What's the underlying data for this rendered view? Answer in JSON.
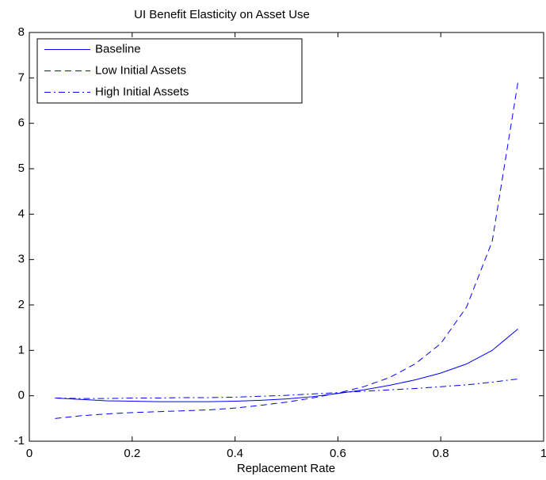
{
  "chart_data": {
    "type": "line",
    "title": "UI Benefit Elasticity on Asset Use",
    "x_label": "Replacement Rate",
    "x": [
      0.05,
      0.1,
      0.15,
      0.2,
      0.25,
      0.3,
      0.35,
      0.4,
      0.45,
      0.5,
      0.55,
      0.6,
      0.65,
      0.7,
      0.75,
      0.8,
      0.85,
      0.9,
      0.95
    ],
    "series": [
      {
        "name": "Baseline",
        "color": "#0000ff",
        "line_style": "solid",
        "values": [
          -0.05,
          -0.08,
          -0.11,
          -0.12,
          -0.13,
          -0.13,
          -0.13,
          -0.12,
          -0.1,
          -0.07,
          -0.02,
          0.05,
          0.13,
          0.23,
          0.35,
          0.5,
          0.7,
          1.0,
          1.47
        ]
      },
      {
        "name": "Low Initial Assets",
        "color": "#0000ff",
        "line_style": "dashed",
        "values": [
          -0.5,
          -0.44,
          -0.4,
          -0.37,
          -0.35,
          -0.33,
          -0.31,
          -0.27,
          -0.21,
          -0.14,
          -0.05,
          0.06,
          0.2,
          0.4,
          0.7,
          1.15,
          1.95,
          3.4,
          6.9
        ]
      },
      {
        "name": "High Initial Assets",
        "color": "#0000ff",
        "line_style": "dashdot",
        "values": [
          -0.05,
          -0.06,
          -0.06,
          -0.05,
          -0.05,
          -0.04,
          -0.04,
          -0.03,
          -0.01,
          0.01,
          0.04,
          0.07,
          0.1,
          0.13,
          0.16,
          0.2,
          0.24,
          0.3,
          0.37
        ]
      }
    ],
    "xlim": [
      0,
      1
    ],
    "xticks": [
      0,
      0.2,
      0.4,
      0.6,
      0.8,
      1
    ],
    "ylim": [
      -1,
      8
    ],
    "yticks": [
      -1,
      0,
      1,
      2,
      3,
      4,
      5,
      6,
      7,
      8
    ],
    "grid": false,
    "legend": "upper left"
  }
}
